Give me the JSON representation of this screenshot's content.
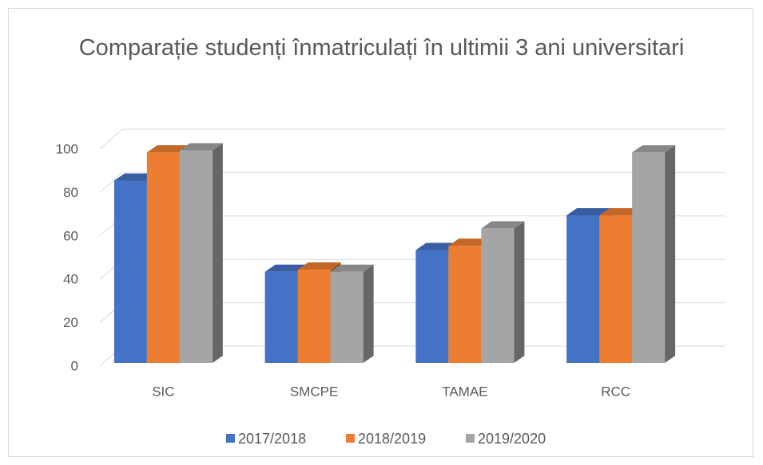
{
  "chart_data": {
    "type": "bar3d",
    "title": "Comparație studenți înmatriculați în ultimii 3 ani universitari",
    "categories": [
      "SIC",
      "SMCPE",
      "TAMAE",
      "RCC"
    ],
    "series": [
      {
        "name": "2017/2018",
        "color": "#4472c4",
        "values": [
          84,
          42,
          52,
          68
        ]
      },
      {
        "name": "2018/2019",
        "color": "#ed7d31",
        "values": [
          97,
          43,
          54,
          68
        ]
      },
      {
        "name": "2019/2020",
        "color": "#a5a5a5",
        "values": [
          98,
          42,
          62,
          97
        ]
      }
    ],
    "ylim": [
      0,
      100
    ],
    "yticks": [
      0,
      20,
      40,
      60,
      80,
      100
    ],
    "grid": true,
    "legend": "bottom"
  }
}
